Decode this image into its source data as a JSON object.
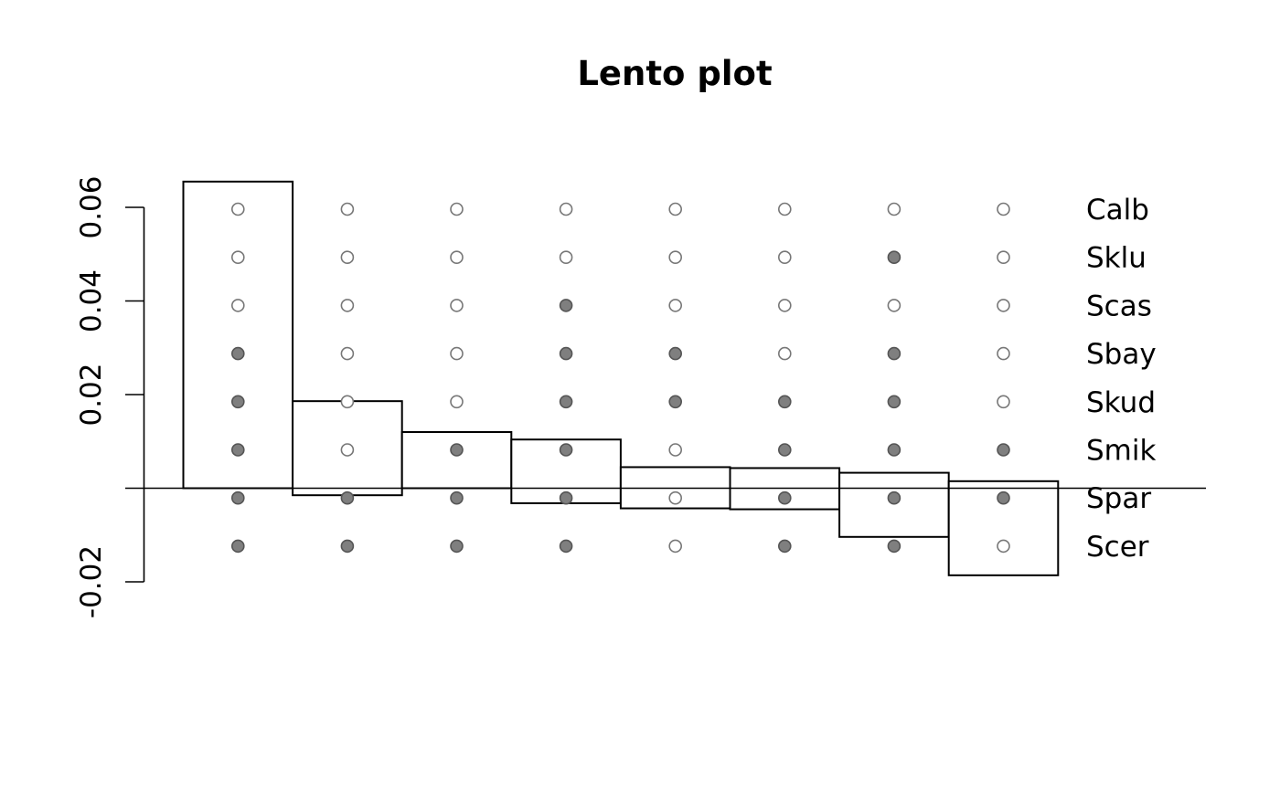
{
  "chart_data": {
    "type": "bar",
    "title": "Lento plot",
    "xlabel": "",
    "ylabel": "",
    "ylim": [
      -0.02,
      0.06
    ],
    "yticks": [
      -0.02,
      0.02,
      0.04,
      0.06
    ],
    "ytick_labels": [
      "-0.02",
      "0.02",
      "0.04",
      "0.06"
    ],
    "grid": false,
    "legend": "none",
    "taxa": [
      "Calb",
      "Sklu",
      "Scas",
      "Sbay",
      "Skud",
      "Smik",
      "Spar",
      "Scer"
    ],
    "splits": [
      {
        "support": 0.0655,
        "conflict": 0.0,
        "membership": [
          0,
          0,
          0,
          1,
          1,
          1,
          1,
          1
        ]
      },
      {
        "support": 0.0186,
        "conflict": -0.0015,
        "membership": [
          0,
          0,
          0,
          0,
          0,
          0,
          1,
          1
        ]
      },
      {
        "support": 0.012,
        "conflict": 0.0,
        "membership": [
          0,
          0,
          0,
          0,
          0,
          1,
          1,
          1
        ]
      },
      {
        "support": 0.0104,
        "conflict": -0.0032,
        "membership": [
          0,
          0,
          1,
          1,
          1,
          1,
          1,
          1
        ]
      },
      {
        "support": 0.0045,
        "conflict": -0.0043,
        "membership": [
          0,
          0,
          0,
          1,
          1,
          0,
          0,
          0
        ]
      },
      {
        "support": 0.0043,
        "conflict": -0.0045,
        "membership": [
          0,
          0,
          0,
          0,
          1,
          1,
          1,
          1
        ]
      },
      {
        "support": 0.0033,
        "conflict": -0.0104,
        "membership": [
          0,
          1,
          0,
          1,
          1,
          1,
          1,
          1
        ]
      },
      {
        "support": 0.0015,
        "conflict": -0.0186,
        "membership": [
          0,
          0,
          0,
          0,
          0,
          1,
          1,
          0
        ]
      }
    ],
    "colors": {
      "bar_fill": "#ffffff",
      "bar_stroke": "#000000",
      "dot_filled": "#7f7f7f",
      "dot_stroke": "#555555",
      "dot_empty_stroke": "#777777"
    }
  }
}
